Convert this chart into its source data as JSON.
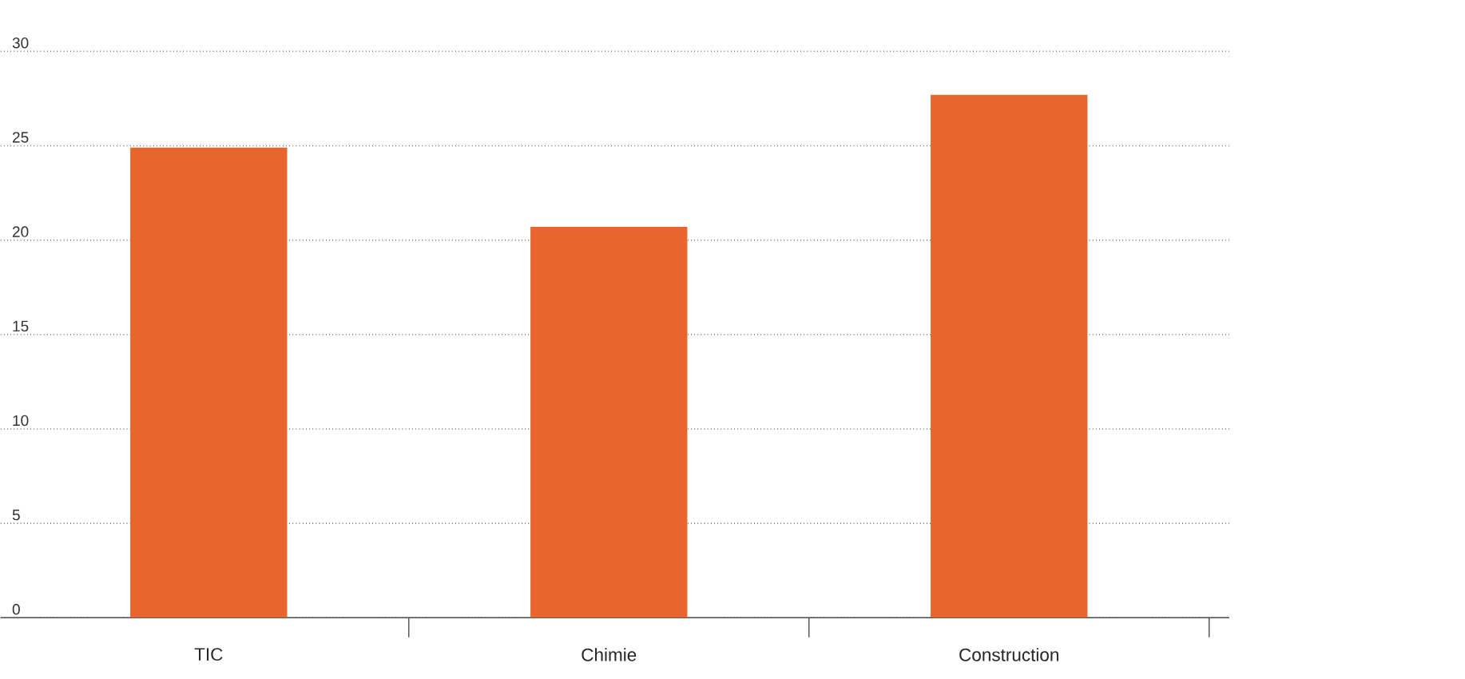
{
  "chart_data": {
    "type": "bar",
    "categories": [
      "TIC",
      "Chimie",
      "Construction"
    ],
    "values": [
      24.9,
      20.7,
      27.7
    ],
    "color": "#e8662e",
    "ylim": [
      0,
      30
    ],
    "yticks": [
      0,
      5,
      10,
      15,
      20,
      25,
      30
    ],
    "grid": "y"
  }
}
